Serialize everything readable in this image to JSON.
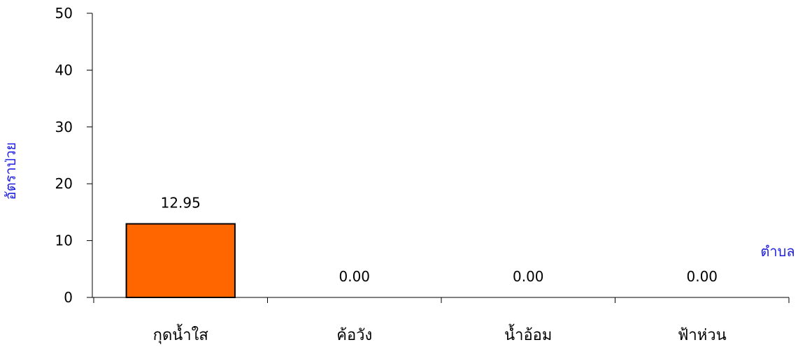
{
  "chart_data": {
    "type": "bar",
    "title": "",
    "xlabel": "ตำบล",
    "ylabel": "อัตราป่วย",
    "categories": [
      "กุดน้ำใส",
      "ค้อวัง",
      "น้ำอ้อม",
      "ฟ้าห่วน"
    ],
    "values": [
      12.95,
      0.0,
      0.0,
      0.0
    ],
    "data_labels": [
      "12.95",
      "0.00",
      "0.00",
      "0.00"
    ],
    "ylim": [
      0,
      50
    ],
    "yticks": [
      0,
      10,
      20,
      30,
      40,
      50
    ],
    "ytick_labels": [
      "0",
      "10",
      "20",
      "30",
      "40",
      "50"
    ],
    "grid": false,
    "legend": "none"
  },
  "colors": {
    "bar_fill": "#FF6600",
    "axis_title": "#1F1FE0"
  }
}
